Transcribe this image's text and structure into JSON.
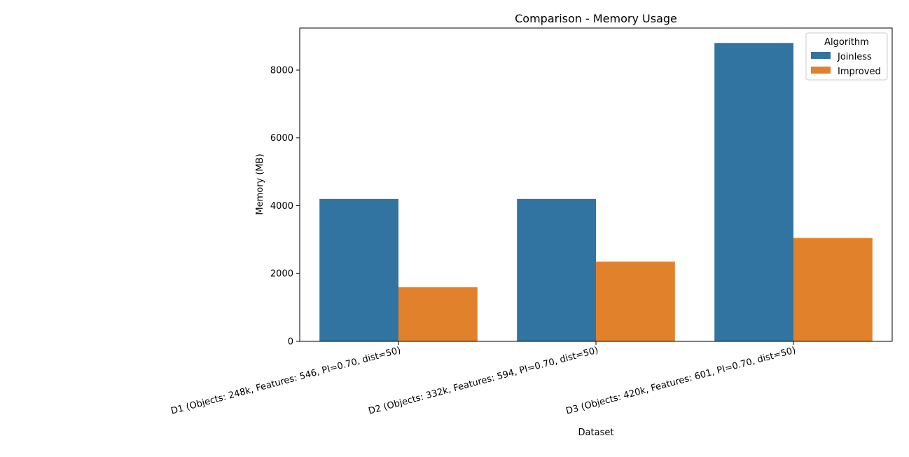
{
  "chart_data": {
    "type": "bar",
    "title": "Comparison - Memory Usage",
    "xlabel": "Dataset",
    "ylabel": "Memory (MB)",
    "categories": [
      "D1 (Objects: 248k, Features: 546, PI=0.70, dist=50)",
      "D2 (Objects: 332k, Features: 594, PI=0.70, dist=50)",
      "D3 (Objects: 420k, Features: 601, PI=0.70, dist=50)"
    ],
    "series": [
      {
        "name": "Joinless",
        "color": "#3274a1",
        "values": [
          4200,
          4200,
          8800
        ]
      },
      {
        "name": "Improved",
        "color": "#e1812c",
        "values": [
          1600,
          2350,
          3050
        ]
      }
    ],
    "ylim": [
      0,
      9240
    ],
    "yticks": [
      0,
      2000,
      4000,
      6000,
      8000
    ],
    "ytick_labels": [
      "0",
      "2000",
      "4000",
      "6000",
      "8000"
    ],
    "legend": {
      "title": "Algorithm",
      "position": "top-right"
    },
    "grid": false
  }
}
